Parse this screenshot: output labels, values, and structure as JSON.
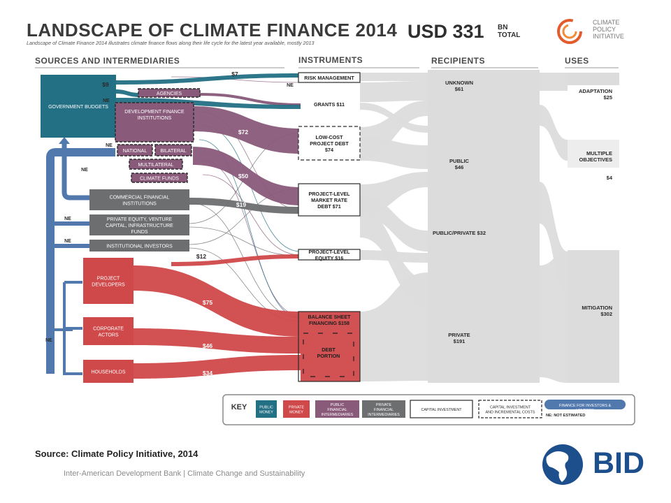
{
  "slide": {
    "title": "LANDSCAPE OF CLIMATE FINANCE 2014",
    "total": "USD 331",
    "total_unit": "BN TOTAL",
    "subtitle": "Landscape of Climate Finance 2014 illustrates climate finance flows along their life cycle for the latest year available, mostly 2013",
    "cpi_logo_text": "CLIMATE POLICY INITIATIVE",
    "source": "Source: Climate Policy Initiative, 2014",
    "footer": "Inter-American  Development Bank | Climate Change and Sustainability",
    "bid_logo_text": "BID"
  },
  "headers": {
    "sources": "SOURCES AND INTERMEDIARIES",
    "instruments": "INSTRUMENTS",
    "recipients": "RECIPIENTS",
    "uses": "USES"
  },
  "sources": [
    {
      "id": "gov",
      "label": "GOVERNMENT BUDGETS"
    },
    {
      "id": "agencies",
      "label": "AGENCIES"
    },
    {
      "id": "dfi",
      "label": "DEVELOPMENT FINANCE INSTITUTIONS"
    },
    {
      "id": "national",
      "label": "NATIONAL"
    },
    {
      "id": "bilateral",
      "label": "BILATERAL"
    },
    {
      "id": "multilateral",
      "label": "MULTILATERAL"
    },
    {
      "id": "climate_funds",
      "label": "CLIMATE FUNDS"
    },
    {
      "id": "commercial",
      "label": "COMMERCIAL FINANCIAL INSTITUTIONS"
    },
    {
      "id": "pe",
      "label": "PRIVATE EQUITY, VENTURE CAPITAL, INFRASTRUCTURE FUNDS"
    },
    {
      "id": "institutional",
      "label": "INSTITUTIONAL INVESTORS"
    },
    {
      "id": "project_dev",
      "label": "PROJECT DEVELOPERS"
    },
    {
      "id": "corporate",
      "label": "CORPORATE ACTORS"
    },
    {
      "id": "households",
      "label": "HOUSEHOLDS"
    }
  ],
  "instruments": [
    {
      "id": "risk",
      "label": "RISK MANAGEMENT"
    },
    {
      "id": "grants",
      "label": "GRANTS $11"
    },
    {
      "id": "lowcost",
      "label": "LOW-COST PROJECT DEBT $74"
    },
    {
      "id": "market",
      "label": "PROJECT-LEVEL MARKET RATE DEBT $71"
    },
    {
      "id": "equity",
      "label": "PROJECT-LEVEL EQUITY $16"
    },
    {
      "id": "balance",
      "label": "BALANCE SHEET FINANCING $158"
    },
    {
      "id": "debt_portion",
      "label": "DEBT PORTION"
    }
  ],
  "recipients": [
    {
      "id": "unknown",
      "label": "UNKNOWN $61"
    },
    {
      "id": "public",
      "label": "PUBLIC $46"
    },
    {
      "id": "pubpriv",
      "label": "PUBLIC/PRIVATE $32"
    },
    {
      "id": "private",
      "label": "PRIVATE $191"
    }
  ],
  "uses": [
    {
      "id": "adaptation",
      "label": "ADAPTATION $25"
    },
    {
      "id": "multiple",
      "label": "MULTIPLE OBJECTIVES"
    },
    {
      "id": "multiple_val",
      "label": "$4"
    },
    {
      "id": "mitigation",
      "label": "MITIGATION $302"
    }
  ],
  "flow_labels": [
    "$7",
    "$9",
    "$72",
    "$50",
    "$19",
    "$12",
    "$75",
    "$46",
    "$34"
  ],
  "ne_label": "NE",
  "key": {
    "title": "KEY",
    "items": [
      {
        "label": "PUBLIC MONEY",
        "color": "#236f84"
      },
      {
        "label": "PRIVATE MONEY",
        "color": "#d0494a"
      },
      {
        "label": "PUBLIC FINANCIAL INTERMEDIARIES",
        "color": "#8a5a7b"
      },
      {
        "label": "PRIVATE FINANCIAL INTERMEDIARIES",
        "color": "#6d6e70"
      },
      {
        "label": "CAPITAL INVESTMENT",
        "color": "#ffffff"
      },
      {
        "label": "CAPITAL INVESTMENT AND INCREMENTAL COSTS",
        "color": "#ffffff"
      },
      {
        "label": "FINANCE FOR INVESTORS & LENDERS",
        "color": "#5279ad"
      }
    ],
    "ne_note": "NE: NOT ESTIMATED"
  },
  "colors": {
    "public": "#236f84",
    "private": "#d0494a",
    "public_fi": "#8a5a7b",
    "private_fi": "#6d6e70",
    "reinvest": "#5279ad",
    "downstream": "#dcdcdc",
    "bid": "#1d4f8c",
    "cpi": "#e35a2b"
  }
}
